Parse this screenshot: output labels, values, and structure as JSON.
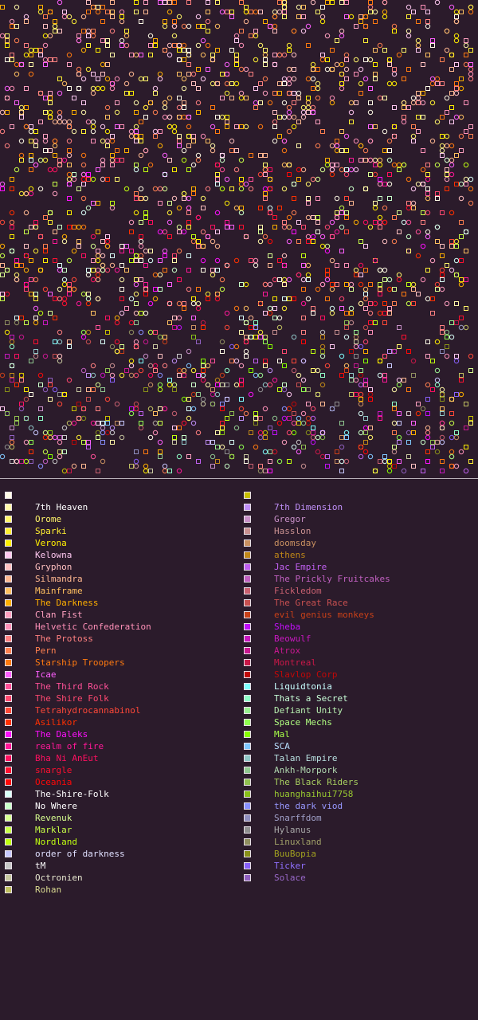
{
  "background_color": "#2b1b2b",
  "legend": {
    "left_column": [
      {
        "name": "",
        "color": "#fffbe6"
      },
      {
        "name": "7th Heaven",
        "color": "#fff8a8",
        "text_color": "#ffffff"
      },
      {
        "name": "Orome",
        "color": "#fff56a",
        "text_color": "#fff56a"
      },
      {
        "name": "Sparki",
        "color": "#fff033",
        "text_color": "#fff033"
      },
      {
        "name": "Verona",
        "color": "#ffee00",
        "text_color": "#ffee00"
      },
      {
        "name": "Kelowna",
        "color": "#ffc8f0",
        "text_color": "#ffc8f0"
      },
      {
        "name": "Gryphon",
        "color": "#ffc0c0",
        "text_color": "#ffc0c0"
      },
      {
        "name": "Silmandra",
        "color": "#ffb890",
        "text_color": "#ffb890"
      },
      {
        "name": "Mainframe",
        "color": "#ffc060",
        "text_color": "#ffc060"
      },
      {
        "name": "The Darkness",
        "color": "#ffb000",
        "text_color": "#ffb000"
      },
      {
        "name": "Clan Fist",
        "color": "#ffa0c0",
        "text_color": "#ffa0c0"
      },
      {
        "name": "Helvetic Confederation",
        "color": "#ff90b8",
        "text_color": "#ff90b8"
      },
      {
        "name": "The Protoss",
        "color": "#ff8080",
        "text_color": "#ff8080"
      },
      {
        "name": "Pern",
        "color": "#ff8050",
        "text_color": "#ff8050"
      },
      {
        "name": "Starship Troopers",
        "color": "#ff7a10",
        "text_color": "#ff7a10"
      },
      {
        "name": "Icae",
        "color": "#ff60ff",
        "text_color": "#ff60ff"
      },
      {
        "name": "The Third Rock",
        "color": "#ff5098",
        "text_color": "#ff5098"
      },
      {
        "name": "The Shire Folk",
        "color": "#ff4870",
        "text_color": "#ff4870"
      },
      {
        "name": "Tetrahydrocannabinol",
        "color": "#ff4838",
        "text_color": "#ff4838"
      },
      {
        "name": "Asilikor",
        "color": "#ff3000",
        "text_color": "#ff3000"
      },
      {
        "name": "The Daleks",
        "color": "#ff10ff",
        "text_color": "#ff10ff"
      },
      {
        "name": "realm of fire",
        "color": "#ff1898",
        "text_color": "#ff1898"
      },
      {
        "name": "Bha Ni AnEut",
        "color": "#ff1060",
        "text_color": "#ff1060"
      },
      {
        "name": "snargle",
        "color": "#ff1030",
        "text_color": "#ff1030"
      },
      {
        "name": "Oceania",
        "color": "#ff0808",
        "text_color": "#ff0808"
      },
      {
        "name": "The-Shire-Folk",
        "color": "#d8fff8",
        "text_color": "#ffffff"
      },
      {
        "name": "No Where",
        "color": "#c8ffc8",
        "text_color": "#ffffff"
      },
      {
        "name": "Revenuk",
        "color": "#d8ff90",
        "text_color": "#d8ff90"
      },
      {
        "name": "Marklar",
        "color": "#c8ff48",
        "text_color": "#c8ff48"
      },
      {
        "name": "Nordland",
        "color": "#c0ff10",
        "text_color": "#c0ff10"
      },
      {
        "name": "order of darkness",
        "color": "#c8c8ff",
        "text_color": "#e0e0ff"
      },
      {
        "name": "tM",
        "color": "#c8c8c8",
        "text_color": "#ffffff"
      },
      {
        "name": "Octronien",
        "color": "#c8c8a0",
        "text_color": "#e8e8d0"
      },
      {
        "name": "Rohan",
        "color": "#c0c060",
        "text_color": "#d8d890"
      }
    ],
    "right_column": [
      {
        "name": "",
        "color": "#c8c000"
      },
      {
        "name": "7th Dimension",
        "color": "#c090f8",
        "text_color": "#c090f8"
      },
      {
        "name": "Gregor",
        "color": "#c890c8",
        "text_color": "#c890c8"
      },
      {
        "name": "Hasslon",
        "color": "#c89090",
        "text_color": "#c89090"
      },
      {
        "name": "doomsday",
        "color": "#c89060",
        "text_color": "#c89060"
      },
      {
        "name": "athens",
        "color": "#c08818",
        "text_color": "#c08818"
      },
      {
        "name": "Jac Empire",
        "color": "#c060f0",
        "text_color": "#c060f0"
      },
      {
        "name": "The Prickly Fruitcakes",
        "color": "#c060c0",
        "text_color": "#c060c0"
      },
      {
        "name": "Fickledom",
        "color": "#c86070",
        "text_color": "#c86070"
      },
      {
        "name": "The Great Race",
        "color": "#c85050",
        "text_color": "#c85050"
      },
      {
        "name": "evil genius monkeys",
        "color": "#c84018",
        "text_color": "#c84018"
      },
      {
        "name": "Sheba",
        "color": "#c010f8",
        "text_color": "#c010f8"
      },
      {
        "name": "Beowulf",
        "color": "#c818c0",
        "text_color": "#c818c0"
      },
      {
        "name": "Atrox",
        "color": "#c81890",
        "text_color": "#c81890"
      },
      {
        "name": "Montreal",
        "color": "#c81848",
        "text_color": "#c81848"
      },
      {
        "name": "Slavlop Corp",
        "color": "#c00808",
        "text_color": "#c00808"
      },
      {
        "name": "Liquidtonia",
        "color": "#80ffff",
        "text_color": "#c8ffff"
      },
      {
        "name": "Thats a Secret",
        "color": "#90ffc8",
        "text_color": "#c8ffd8"
      },
      {
        "name": "Defiant Unity",
        "color": "#98f090",
        "text_color": "#b8f0b0"
      },
      {
        "name": "Space Mechs",
        "color": "#90ff50",
        "text_color": "#b0ff80"
      },
      {
        "name": "Mal",
        "color": "#88ff00",
        "text_color": "#a8ff48"
      },
      {
        "name": "SCA",
        "color": "#80c8ff",
        "text_color": "#b8e0ff"
      },
      {
        "name": "Talan Empire",
        "color": "#90c8c8",
        "text_color": "#b8e0e0"
      },
      {
        "name": "Ankh-Morpork",
        "color": "#90c890",
        "text_color": "#b0d8b0"
      },
      {
        "name": "The Black Riders",
        "color": "#90c050",
        "text_color": "#a8d060"
      },
      {
        "name": "huanghaihui7758",
        "color": "#88c018",
        "text_color": "#98c830"
      },
      {
        "name": "the dark viod",
        "color": "#8890ff",
        "text_color": "#9898ff"
      },
      {
        "name": "Snarffdom",
        "color": "#9090c0",
        "text_color": "#a0a0c8"
      },
      {
        "name": "Hylanus",
        "color": "#909090",
        "text_color": "#a8a8a8"
      },
      {
        "name": "Linuxland",
        "color": "#909060",
        "text_color": "#a0a068"
      },
      {
        "name": "BuuBopia",
        "color": "#889018",
        "text_color": "#a0a020"
      },
      {
        "name": "Ticker",
        "color": "#8860f8",
        "text_color": "#9070ff"
      },
      {
        "name": "Solace",
        "color": "#9060c0",
        "text_color": "#9868c8"
      }
    ]
  }
}
